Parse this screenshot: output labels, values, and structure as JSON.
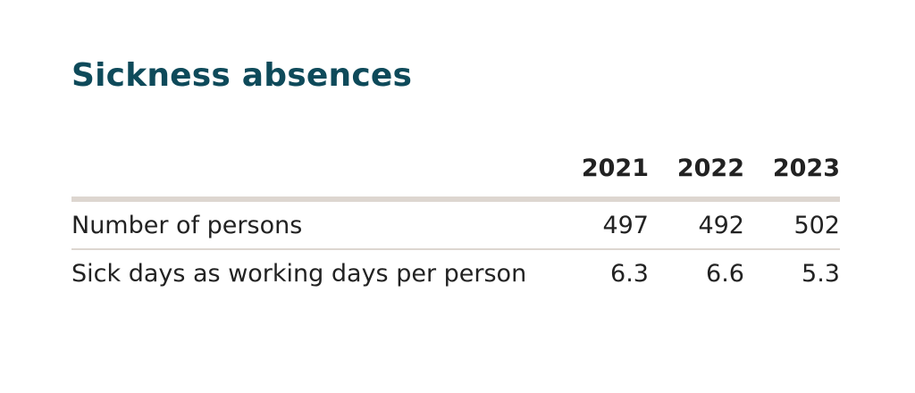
{
  "title": "Sickness absences",
  "table": {
    "header": [
      "2021",
      "2022",
      "2023"
    ],
    "rows": [
      [
        "Number of persons",
        "497",
        "492",
        "502"
      ],
      [
        "Sick days as working days per person",
        "6.3",
        "6.6",
        "5.3"
      ]
    ]
  }
}
